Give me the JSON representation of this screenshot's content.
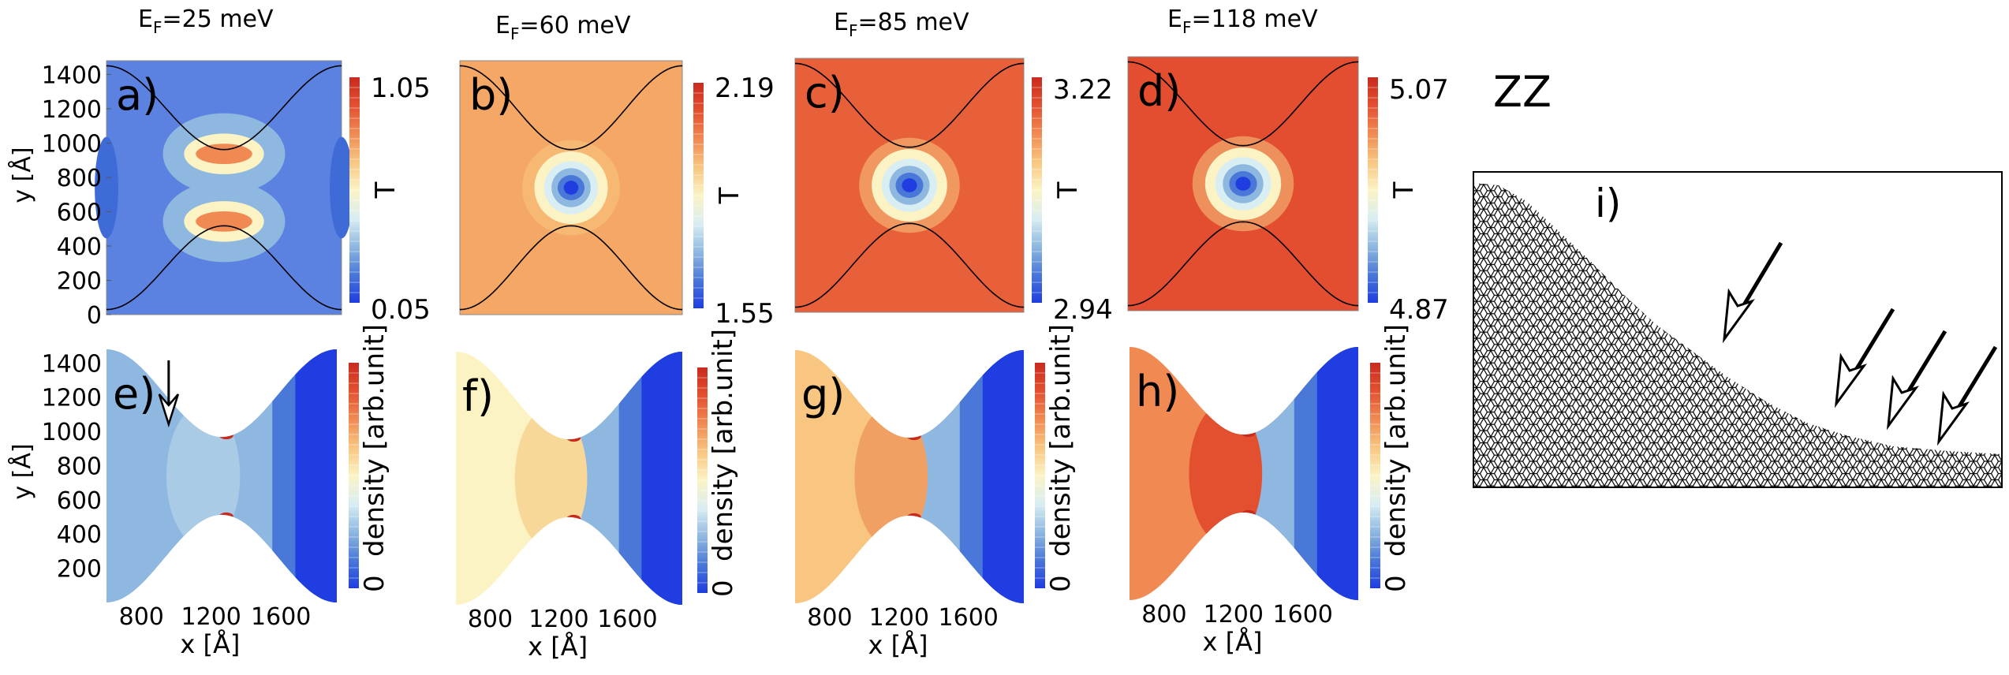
{
  "chart_data": {
    "type": "heatmap",
    "column_titles": [
      {
        "prefix": "E",
        "sub": "F",
        "suffix": "=25 meV"
      },
      {
        "prefix": "E",
        "sub": "F",
        "suffix": "=60 meV"
      },
      {
        "prefix": "E",
        "sub": "F",
        "suffix": "=85 meV"
      },
      {
        "prefix": "E",
        "sub": "F",
        "suffix": "=118 meV"
      }
    ],
    "transmission_maps": [
      {
        "label": "a)",
        "cbar_min": "0.05",
        "cbar_max": "1.05",
        "cbar_label": "T",
        "min": 0.05,
        "max": 1.05
      },
      {
        "label": "b)",
        "cbar_min": "1.55",
        "cbar_max": "2.19",
        "cbar_label": "T",
        "min": 1.55,
        "max": 2.19
      },
      {
        "label": "c)",
        "cbar_min": "2.94",
        "cbar_max": "3.22",
        "cbar_label": "T",
        "min": 2.94,
        "max": 3.22
      },
      {
        "label": "d)",
        "cbar_min": "4.87",
        "cbar_max": "5.07",
        "cbar_label": "T",
        "min": 4.87,
        "max": 5.07
      }
    ],
    "density_maps": [
      {
        "label": "e)",
        "cbar_min": "0",
        "cbar_label": "density [arb.unit]"
      },
      {
        "label": "f)",
        "cbar_min": "0",
        "cbar_label": "density [arb.unit]"
      },
      {
        "label": "g)",
        "cbar_min": "0",
        "cbar_label": "density [arb.unit]"
      },
      {
        "label": "h)",
        "cbar_min": "0",
        "cbar_label": "density [arb.unit]"
      }
    ],
    "top_yaxis": {
      "label": "y [Å]",
      "ticks": [
        "0",
        "200",
        "400",
        "600",
        "800",
        "1000",
        "1200",
        "1400"
      ],
      "range": [
        0,
        1480
      ]
    },
    "bottom_yaxis": {
      "label": "y [Å]",
      "ticks": [
        "200",
        "400",
        "600",
        "800",
        "1000",
        "1200",
        "1400"
      ],
      "range": [
        0,
        1480
      ]
    },
    "xaxis": {
      "label": "x [Å]",
      "ticks": [
        "800",
        "1200",
        "1600"
      ],
      "range": [
        600,
        1920
      ]
    },
    "edge_type": "ZZ",
    "inset_label": "i)"
  },
  "colors": {
    "colormap": [
      "#1f3de0",
      "#4a78d8",
      "#8fb8e0",
      "#d9eef2",
      "#fbf3c4",
      "#f8c680",
      "#f08a52",
      "#e35030",
      "#c92a1e"
    ],
    "t_background": [
      "#5b82e0",
      "#f5a766",
      "#e8603a",
      "#e24e2f"
    ],
    "constriction_line": "#000000"
  }
}
